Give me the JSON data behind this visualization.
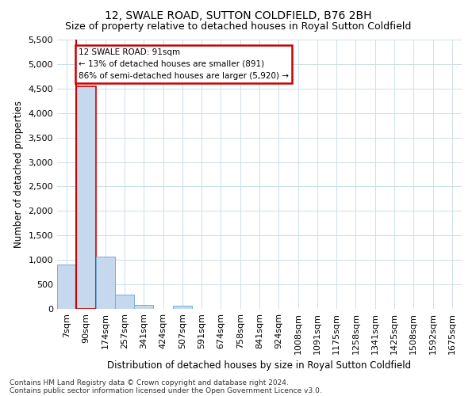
{
  "title": "12, SWALE ROAD, SUTTON COLDFIELD, B76 2BH",
  "subtitle": "Size of property relative to detached houses in Royal Sutton Coldfield",
  "xlabel": "Distribution of detached houses by size in Royal Sutton Coldfield",
  "ylabel": "Number of detached properties",
  "footnote1": "Contains HM Land Registry data © Crown copyright and database right 2024.",
  "footnote2": "Contains public sector information licensed under the Open Government Licence v3.0.",
  "annotation_title": "12 SWALE ROAD: 91sqm",
  "annotation_line2": "← 13% of detached houses are smaller (891)",
  "annotation_line3": "86% of semi-detached houses are larger (5,920) →",
  "bar_labels": [
    "7sqm",
    "90sqm",
    "174sqm",
    "257sqm",
    "341sqm",
    "424sqm",
    "507sqm",
    "591sqm",
    "674sqm",
    "758sqm",
    "841sqm",
    "924sqm",
    "1008sqm",
    "1091sqm",
    "1175sqm",
    "1258sqm",
    "1341sqm",
    "1425sqm",
    "1508sqm",
    "1592sqm",
    "1675sqm"
  ],
  "bar_heights": [
    900,
    4550,
    1060,
    290,
    80,
    0,
    60,
    0,
    0,
    0,
    0,
    0,
    0,
    0,
    0,
    0,
    0,
    0,
    0,
    0,
    0
  ],
  "bar_color": "#c5d8ed",
  "bar_edge_color": "#7aadd4",
  "highlight_bar_index": 1,
  "highlight_edge_color": "#cc0000",
  "red_line_x": 0.5,
  "ylim": [
    0,
    5500
  ],
  "yticks": [
    0,
    500,
    1000,
    1500,
    2000,
    2500,
    3000,
    3500,
    4000,
    4500,
    5000,
    5500
  ],
  "bg_color": "#ffffff",
  "grid_color": "#ccdde8",
  "title_fontsize": 10,
  "subtitle_fontsize": 9,
  "annotation_box_color": "#ffffff",
  "annotation_box_edge": "#cc0000"
}
